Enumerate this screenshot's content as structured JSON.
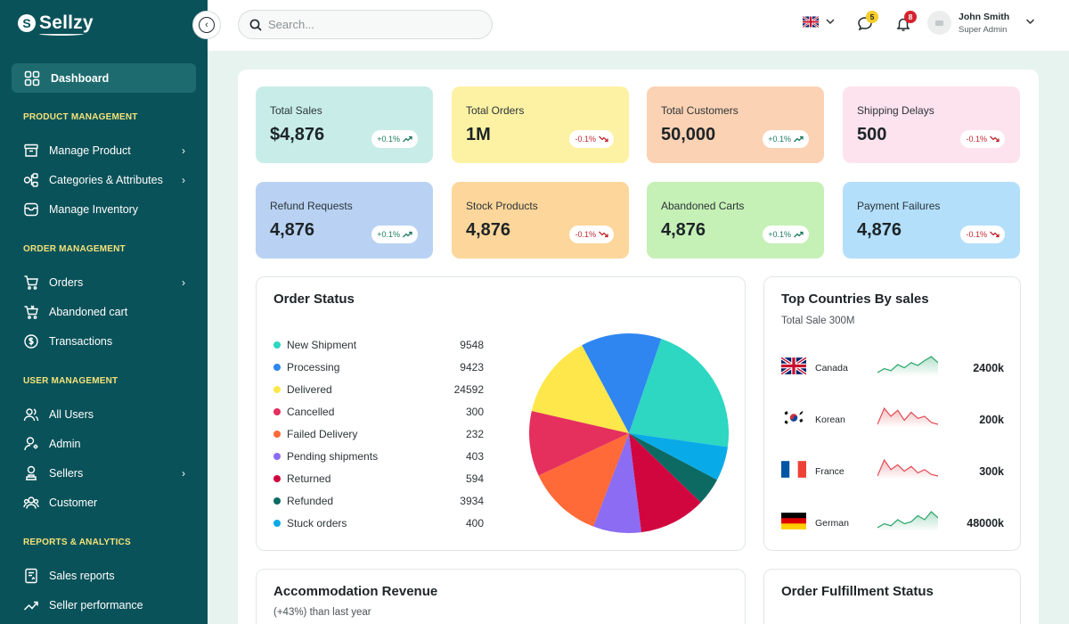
{
  "brand": {
    "name": "Sellzy",
    "mark": "S"
  },
  "sidebar": {
    "active": {
      "label": "Dashboard",
      "icon": "dashboard-grid-icon"
    },
    "sections": [
      {
        "title": "PRODUCT MANAGEMENT",
        "items": [
          {
            "label": "Manage Product",
            "icon": "box-icon",
            "has_children": true
          },
          {
            "label": "Categories & Attributes",
            "icon": "categories-icon",
            "has_children": true
          },
          {
            "label": "Manage Inventory",
            "icon": "inventory-icon",
            "has_children": false
          }
        ]
      },
      {
        "title": "ORDER MANAGEMENT",
        "items": [
          {
            "label": "Orders",
            "icon": "cart-icon",
            "has_children": true
          },
          {
            "label": "Abandoned cart",
            "icon": "abandoned-cart-icon",
            "has_children": false
          },
          {
            "label": "Transactions",
            "icon": "dollar-circle-icon",
            "has_children": false
          }
        ]
      },
      {
        "title": "USER MANAGEMENT",
        "items": [
          {
            "label": "All Users",
            "icon": "users-icon",
            "has_children": false
          },
          {
            "label": "Admin",
            "icon": "admin-icon",
            "has_children": false
          },
          {
            "label": "Sellers",
            "icon": "seller-icon",
            "has_children": true
          },
          {
            "label": "Customer",
            "icon": "customer-icon",
            "has_children": false
          }
        ]
      },
      {
        "title": "REPORTS & ANALYTICS",
        "items": [
          {
            "label": "Sales reports",
            "icon": "report-icon",
            "has_children": false
          },
          {
            "label": "Seller performance",
            "icon": "trend-icon",
            "has_children": false
          }
        ]
      }
    ]
  },
  "topbar": {
    "search_placeholder": "Search...",
    "messages_count": "5",
    "notifications_count": "8",
    "user": {
      "name": "John Smith",
      "role": "Super Admin"
    }
  },
  "stats": [
    {
      "title": "Total Sales",
      "value": "$4,876",
      "change": "+0.1%",
      "trend": "up",
      "color": "#c8ede9"
    },
    {
      "title": "Total Orders",
      "value": "1M",
      "change": "-0.1%",
      "trend": "down",
      "color": "#fdf2a4"
    },
    {
      "title": "Total Customers",
      "value": "50,000",
      "change": "+0.1%",
      "trend": "up",
      "color": "#fcd2b4"
    },
    {
      "title": "Shipping Delays",
      "value": "500",
      "change": "-0.1%",
      "trend": "down",
      "color": "#fde3ee"
    },
    {
      "title": "Refund Requests",
      "value": "4,876",
      "change": "+0.1%",
      "trend": "up",
      "color": "#b9d2f3"
    },
    {
      "title": "Stock Products",
      "value": "4,876",
      "change": "-0.1%",
      "trend": "down",
      "color": "#fcd69a"
    },
    {
      "title": "Abandoned Carts",
      "value": "4,876",
      "change": "+0.1%",
      "trend": "up",
      "color": "#c5f0b6"
    },
    {
      "title": "Payment Failures",
      "value": "4,876",
      "change": "-0.1%",
      "trend": "down",
      "color": "#b3dffb"
    }
  ],
  "order_status": {
    "title": "Order Status",
    "items": [
      {
        "label": "New Shipment",
        "value": "9548",
        "color": "#2dd7c2"
      },
      {
        "label": "Processing",
        "value": "9423",
        "color": "#2f86f0"
      },
      {
        "label": "Delivered",
        "value": "24592",
        "color": "#fde74a"
      },
      {
        "label": "Cancelled",
        "value": "300",
        "color": "#e5305e"
      },
      {
        "label": "Failed Delivery",
        "value": "232",
        "color": "#ff6a38"
      },
      {
        "label": "Pending shipments",
        "value": "403",
        "color": "#8b6cf2"
      },
      {
        "label": "Returned",
        "value": "594",
        "color": "#d1063f"
      },
      {
        "label": "Refunded",
        "value": "3934",
        "color": "#0c6a63"
      },
      {
        "label": "Stuck orders",
        "value": "400",
        "color": "#09aae8"
      }
    ],
    "pie_slices": [
      {
        "name": "New Shipment",
        "share": 0.2194,
        "color": "#2dd7c2"
      },
      {
        "name": "Stuck orders",
        "share": 0.0556,
        "color": "#09aae8"
      },
      {
        "name": "Refunded",
        "share": 0.0444,
        "color": "#0c6a63"
      },
      {
        "name": "Returned",
        "share": 0.1083,
        "color": "#d1063f"
      },
      {
        "name": "Pending shipments",
        "share": 0.0778,
        "color": "#8b6cf2"
      },
      {
        "name": "Failed Delivery",
        "share": 0.1222,
        "color": "#ff6a38"
      },
      {
        "name": "Cancelled",
        "share": 0.1056,
        "color": "#e5305e"
      },
      {
        "name": "Delivered",
        "share": 0.1361,
        "color": "#fde74a"
      },
      {
        "name": "Processing",
        "share": 0.1306,
        "color": "#2f86f0"
      }
    ]
  },
  "top_countries": {
    "title": "Top Countries By sales",
    "subtitle": "Total Sale 300M",
    "items": [
      {
        "name": "Canada",
        "value": "2400k",
        "flag": "uk-flag-icon",
        "trend": "up",
        "color": "#28a56b",
        "spark": [
          3,
          4,
          3.5,
          5,
          4.2,
          5.5,
          4.8,
          6,
          7,
          5.5
        ]
      },
      {
        "name": "Korean",
        "value": "200k",
        "flag": "korea-flag-icon",
        "trend": "down",
        "color": "#e04b54",
        "spark": [
          2,
          6,
          4,
          5.5,
          3,
          5,
          3.5,
          4,
          2.5,
          2
        ]
      },
      {
        "name": "France",
        "value": "300k",
        "flag": "france-flag-icon",
        "trend": "down",
        "color": "#e04b54",
        "spark": [
          2,
          7,
          4,
          5.5,
          3.5,
          5,
          3,
          4,
          2.5,
          2
        ]
      },
      {
        "name": "German",
        "value": "48000k",
        "flag": "germany-flag-icon",
        "trend": "up",
        "color": "#28a56b",
        "spark": [
          2,
          3,
          2.5,
          4,
          3,
          3.5,
          5,
          4,
          6,
          4.5
        ]
      }
    ]
  },
  "revenue": {
    "title": "Accommodation Revenue",
    "subtitle": "(+43%) than last year"
  },
  "fulfillment": {
    "title": "Order Fulfillment Status"
  }
}
